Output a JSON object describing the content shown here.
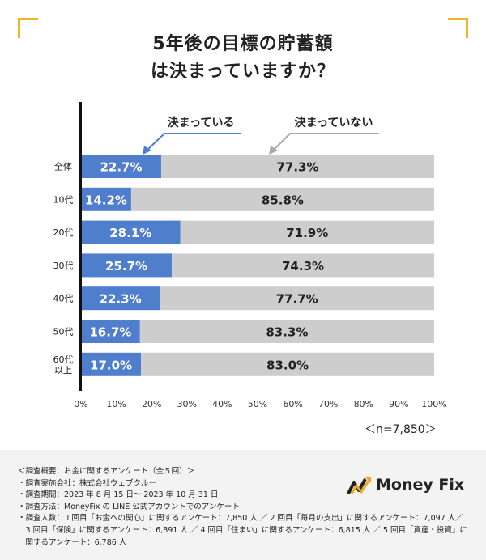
{
  "title": {
    "line1": "5年後の目標の貯蓄額",
    "line2": "は決まっていますか？"
  },
  "chart_data": {
    "type": "bar",
    "stacked": true,
    "orientation": "horizontal",
    "categories": [
      "全体",
      "10代",
      "20代",
      "30代",
      "40代",
      "50代",
      "60代\n以上"
    ],
    "series": [
      {
        "name": "決まっている",
        "values": [
          22.7,
          14.2,
          28.1,
          25.7,
          22.3,
          16.7,
          17.0
        ],
        "labels": [
          "22.7%",
          "14.2%",
          "28.1%",
          "25.7%",
          "22.3%",
          "16.7%",
          "17.0%"
        ]
      },
      {
        "name": "決まっていない",
        "values": [
          77.3,
          85.8,
          71.9,
          74.3,
          77.7,
          83.3,
          83.0
        ],
        "labels": [
          "77.3%",
          "85.8%",
          "71.9%",
          "74.3%",
          "77.7%",
          "83.3%",
          "83.0%"
        ]
      }
    ],
    "xlim": [
      0,
      100
    ],
    "xticks": [
      "0%",
      "10%",
      "20%",
      "30%",
      "40%",
      "50%",
      "60%",
      "70%",
      "80%",
      "90%",
      "100%"
    ],
    "colors": {
      "決まっている": "#4f7fcc",
      "決まっていない": "#cdcdcd"
    },
    "legend": "top, callouts with arrows"
  },
  "sample_size": "＜n=7,850＞",
  "notes": [
    "＜調査概要：お金に関するアンケート（全５回）＞",
    "・調査実施会社：株式会社ウェブクルー",
    "・調査期間：2023 年 8 月 15 日～ 2023 年 10 月 31 日",
    "・調査方法：MoneyFix の LINE 公式アカウントでのアンケート",
    "・調査人数：１回目「お金への関心」に関するアンケート：7,850 人 ／ 2 回目「毎月の支出」に関するアンケート：7,097 人／",
    "　3 回目「保険」に関するアンケート：6,891 人 ／ 4 回目「住まい」に関するアンケート：6,815 人 ／ 5 回目「資産・投資」に",
    "　関するアンケート：6,786 人"
  ],
  "logo": {
    "text": "Money Fix",
    "icon": "money-fix-logo-icon"
  }
}
